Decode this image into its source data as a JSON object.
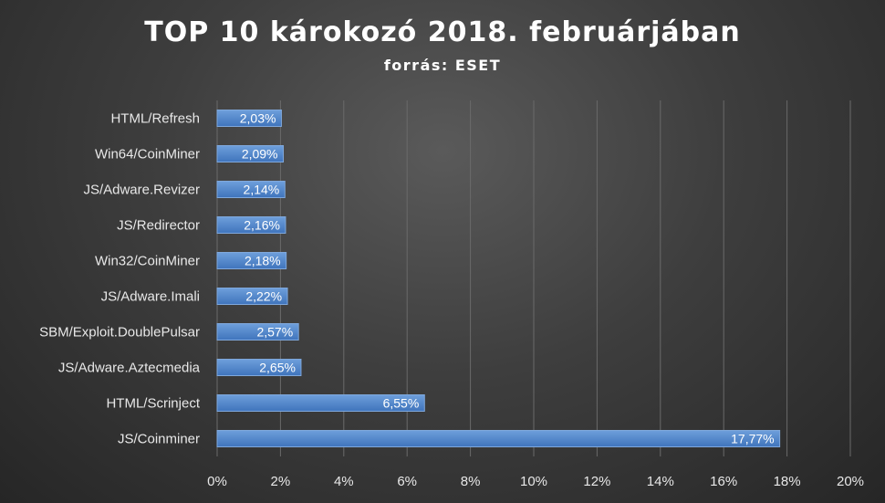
{
  "chart_data": {
    "type": "bar",
    "orientation": "horizontal",
    "title": "TOP 10 károkozó 2018. februárjában",
    "subtitle": "forrás: ESET",
    "categories": [
      "HTML/Refresh",
      "Win64/CoinMiner",
      "JS/Adware.Revizer",
      "JS/Redirector",
      "Win32/CoinMiner",
      "JS/Adware.Imali",
      "SBM/Exploit.DoublePulsar",
      "JS/Adware.Aztecmedia",
      "HTML/Scrinject",
      "JS/Coinminer"
    ],
    "values": [
      2.03,
      2.09,
      2.14,
      2.16,
      2.18,
      2.22,
      2.57,
      2.65,
      6.55,
      17.77
    ],
    "value_labels": [
      "2,03%",
      "2,09%",
      "2,14%",
      "2,16%",
      "2,18%",
      "2,22%",
      "2,57%",
      "2,65%",
      "6,55%",
      "17,77%"
    ],
    "xlim": [
      0,
      20
    ],
    "x_ticks": [
      "0%",
      "2%",
      "4%",
      "6%",
      "8%",
      "10%",
      "12%",
      "14%",
      "16%",
      "18%",
      "20%"
    ],
    "grid": true,
    "legend": "none",
    "colors": {
      "bar": "#4a7fc4",
      "bar_light": "#6a9ad6",
      "bar_edge": "#7fa8dc",
      "grid": "#6a6a6a",
      "text": "#e8e8e8"
    }
  }
}
